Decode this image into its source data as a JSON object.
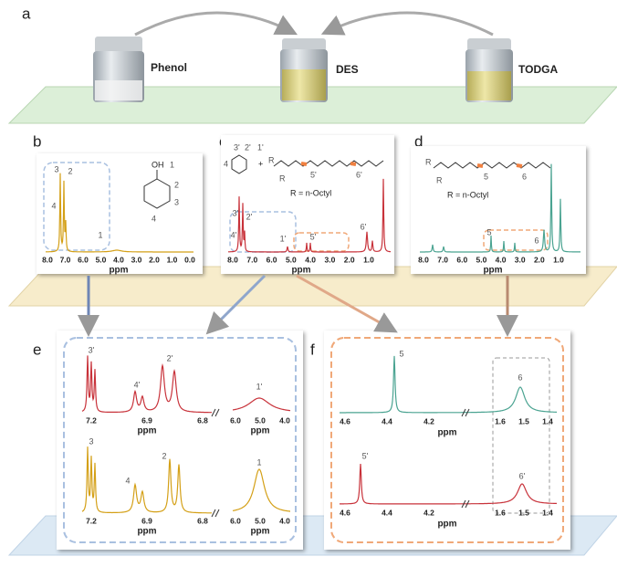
{
  "panel_a": {
    "label": "a",
    "vials": [
      "Phenol",
      "DES",
      "TODGA"
    ]
  },
  "panel_b": {
    "label": "b",
    "oh": "OH",
    "positions": [
      "1",
      "2",
      "3",
      "4"
    ],
    "peaks": [
      "3",
      "2",
      "4",
      "1"
    ],
    "xlabel": "ppm",
    "xticks": [
      "8.0",
      "7.0",
      "6.0",
      "5.0",
      "4.0",
      "3.0",
      "2.0",
      "1.0",
      "0.0"
    ]
  },
  "panel_c": {
    "label": "c",
    "positions": [
      "4",
      "3'",
      "2'",
      "1'",
      "5'",
      "6'"
    ],
    "plus": "+",
    "r": [
      "R",
      "R"
    ],
    "r_def": "R = n-Octyl",
    "peaks": [
      "3'",
      "2'",
      "4'",
      "1'",
      "5'",
      "6'"
    ],
    "xlabel": "ppm",
    "xticks": [
      "8.0",
      "7.0",
      "6.0",
      "5.0",
      "4.0",
      "3.0",
      "2.0",
      "1.0"
    ]
  },
  "panel_d": {
    "label": "d",
    "positions": [
      "5",
      "6"
    ],
    "r": [
      "R",
      "R"
    ],
    "r_def": "R = n-Octyl",
    "peaks": [
      "5",
      "6"
    ],
    "xlabel": "ppm",
    "xticks": [
      "8.0",
      "7.0",
      "6.0",
      "5.0",
      "4.0",
      "3.0",
      "2.0",
      "1.0"
    ]
  },
  "panel_e": {
    "label": "e",
    "top_peaks": [
      "3'",
      "4'",
      "2'",
      "1'"
    ],
    "bottom_peaks": [
      "3",
      "4",
      "2",
      "1"
    ],
    "xlabel": "ppm",
    "left_xticks": [
      "7.2",
      "6.9",
      "6.8"
    ],
    "right_xticks": [
      "6.0",
      "5.0",
      "4.0"
    ]
  },
  "panel_f": {
    "label": "f",
    "top_peaks": [
      "5",
      "6"
    ],
    "bottom_peaks": [
      "5'",
      "6'"
    ],
    "xlabel": "ppm",
    "left_xticks": [
      "4.6",
      "4.4",
      "4.2"
    ],
    "right_xticks": [
      "1.6",
      "1.5",
      "1.4"
    ]
  }
}
